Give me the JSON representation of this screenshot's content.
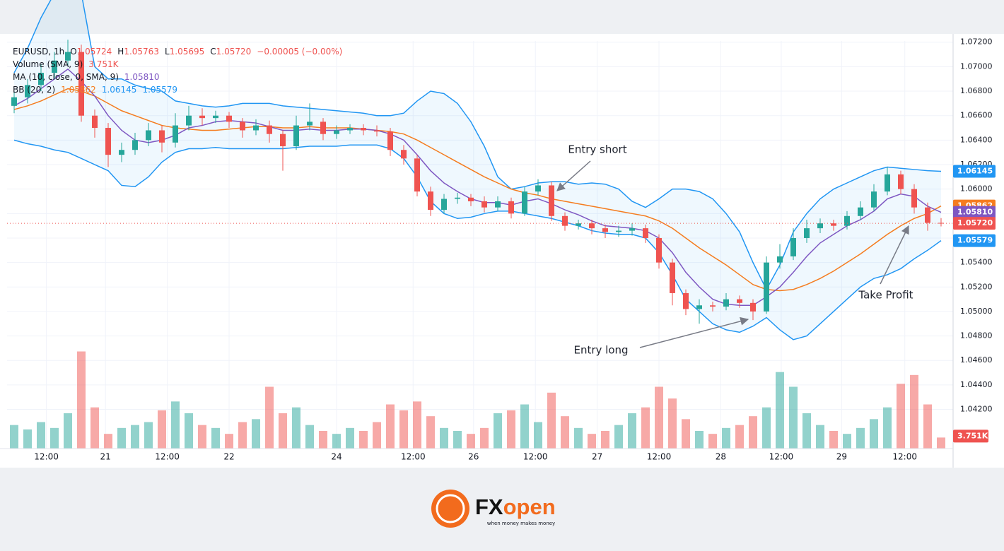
{
  "chart_data": {
    "type": "candlestick",
    "symbol": "EURUSD, 1h",
    "ohlc_legend": [
      {
        "key": "O",
        "value": "1.05724"
      },
      {
        "key": "H",
        "value": "1.05763"
      },
      {
        "key": "L",
        "value": "1.05695"
      },
      {
        "key": "C",
        "value": "1.05720"
      }
    ],
    "change": "−0.00005 (−0.00%)",
    "readouts": [
      {
        "name": "Volume (SMA, 9)",
        "values": [
          {
            "text": "3.751K",
            "color": "#ef5350"
          }
        ]
      },
      {
        "name": "MA (10, close, 0, SMA, 9)",
        "values": [
          {
            "text": "1.05810",
            "color": "#7e57c2"
          }
        ]
      },
      {
        "name": "BB (20, 2)",
        "values": [
          {
            "text": "1.05862",
            "color": "#f57c1f"
          },
          {
            "text": "1.06145",
            "color": "#2196f3"
          },
          {
            "text": "1.05579",
            "color": "#2196f3"
          }
        ]
      }
    ],
    "up_color": "#26a69a",
    "down_color": "#ef5350",
    "ma_color": "#7e57c2",
    "bb_mid_color": "#f57c1f",
    "bb_band_color": "#2196f3",
    "ylim": [
      1.0388,
      1.0721
    ],
    "yticks": [
      {
        "value": 1.042,
        "label": "1.04200"
      },
      {
        "value": 1.044,
        "label": "1.04400"
      },
      {
        "value": 1.046,
        "label": "1.04600"
      },
      {
        "value": 1.048,
        "label": "1.04800"
      },
      {
        "value": 1.05,
        "label": "1.05000"
      },
      {
        "value": 1.052,
        "label": "1.05200"
      },
      {
        "value": 1.054,
        "label": "1.05400"
      },
      {
        "value": 1.056,
        "label": "1.05600"
      },
      {
        "value": 1.058,
        "label": "1.05800"
      },
      {
        "value": 1.06,
        "label": "1.06000"
      },
      {
        "value": 1.062,
        "label": "1.06200"
      },
      {
        "value": 1.064,
        "label": "1.06400"
      },
      {
        "value": 1.066,
        "label": "1.06600"
      },
      {
        "value": 1.068,
        "label": "1.06800"
      },
      {
        "value": 1.07,
        "label": "1.07000"
      },
      {
        "value": 1.072,
        "label": "1.07200"
      }
    ],
    "xticks": [
      {
        "value": 2.4,
        "label": "12:00"
      },
      {
        "value": 6.8,
        "label": "21"
      },
      {
        "value": 11.4,
        "label": "12:00"
      },
      {
        "value": 16,
        "label": "22"
      },
      {
        "value": 24,
        "label": "24"
      },
      {
        "value": 29.7,
        "label": "12:00"
      },
      {
        "value": 34.2,
        "label": "26"
      },
      {
        "value": 38.8,
        "label": "12:00"
      },
      {
        "value": 43.4,
        "label": "27"
      },
      {
        "value": 48,
        "label": "12:00"
      },
      {
        "value": 52.6,
        "label": "28"
      },
      {
        "value": 57.1,
        "label": "12:00"
      },
      {
        "value": 61.6,
        "label": "29"
      },
      {
        "value": 66.3,
        "label": "12:00"
      }
    ],
    "grid": true,
    "open": [
      1.0668,
      1.0675,
      1.0685,
      1.0695,
      1.0705,
      1.0712,
      1.066,
      1.065,
      1.0628,
      1.0632,
      1.064,
      1.0648,
      1.0638,
      1.0652,
      1.066,
      1.0658,
      1.066,
      1.0655,
      1.0648,
      1.0652,
      1.0645,
      1.0635,
      1.0652,
      1.0655,
      1.0645,
      1.0648,
      1.065,
      1.0648,
      1.0647,
      1.0632,
      1.0625,
      1.0598,
      1.0583,
      1.0592,
      1.0593,
      1.059,
      1.0585,
      1.059,
      1.058,
      1.0598,
      1.0603,
      1.0578,
      1.057,
      1.0572,
      1.0568,
      1.0565,
      1.0566,
      1.0568,
      1.056,
      1.054,
      1.0515,
      1.0502,
      1.0505,
      1.0504,
      1.051,
      1.0507,
      1.05,
      1.054,
      1.0545,
      1.056,
      1.0568,
      1.0572,
      1.057,
      1.0578,
      1.0585,
      1.0598,
      1.0612,
      1.06,
      1.0585,
      1.05724
    ],
    "high": [
      1.068,
      1.069,
      1.0702,
      1.0712,
      1.0722,
      1.0718,
      1.0665,
      1.0654,
      1.0638,
      1.0646,
      1.0654,
      1.0652,
      1.0662,
      1.0668,
      1.0666,
      1.0664,
      1.0663,
      1.0658,
      1.0657,
      1.0656,
      1.0648,
      1.066,
      1.067,
      1.0658,
      1.0652,
      1.0653,
      1.0653,
      1.0652,
      1.065,
      1.0636,
      1.0628,
      1.0602,
      1.0596,
      1.0597,
      1.0596,
      1.0594,
      1.0594,
      1.0593,
      1.0602,
      1.0608,
      1.0606,
      1.0581,
      1.0575,
      1.0575,
      1.0571,
      1.057,
      1.0572,
      1.0571,
      1.0563,
      1.0543,
      1.0518,
      1.051,
      1.0508,
      1.0515,
      1.0513,
      1.051,
      1.0545,
      1.0555,
      1.0568,
      1.0575,
      1.0576,
      1.0575,
      1.0582,
      1.059,
      1.0604,
      1.0618,
      1.0615,
      1.0604,
      1.0589,
      1.05763
    ],
    "low": [
      1.0662,
      1.067,
      1.068,
      1.069,
      1.07,
      1.0655,
      1.0642,
      1.0618,
      1.0622,
      1.0628,
      1.0635,
      1.063,
      1.0634,
      1.0648,
      1.0652,
      1.0654,
      1.065,
      1.0642,
      1.0644,
      1.0638,
      1.0615,
      1.0632,
      1.0648,
      1.064,
      1.0641,
      1.0645,
      1.0644,
      1.0643,
      1.0627,
      1.062,
      1.0594,
      1.0578,
      1.058,
      1.0588,
      1.0586,
      1.0581,
      1.0582,
      1.0576,
      1.0578,
      1.0595,
      1.0574,
      1.0566,
      1.0567,
      1.0563,
      1.056,
      1.0561,
      1.0562,
      1.0556,
      1.0535,
      1.0505,
      1.0497,
      1.049,
      1.05,
      1.0501,
      1.0503,
      1.0493,
      1.0498,
      1.0535,
      1.0542,
      1.0556,
      1.0564,
      1.0566,
      1.0567,
      1.0575,
      1.0582,
      1.0595,
      1.0596,
      1.058,
      1.0566,
      1.05695
    ],
    "close": [
      1.0675,
      1.0685,
      1.0695,
      1.0705,
      1.0712,
      1.066,
      1.065,
      1.0628,
      1.0632,
      1.064,
      1.0648,
      1.0638,
      1.0652,
      1.066,
      1.0658,
      1.066,
      1.0655,
      1.0648,
      1.0652,
      1.0645,
      1.0635,
      1.0652,
      1.0655,
      1.0645,
      1.0648,
      1.065,
      1.0648,
      1.0647,
      1.0632,
      1.0625,
      1.0598,
      1.0583,
      1.0592,
      1.0593,
      1.059,
      1.0585,
      1.059,
      1.058,
      1.0598,
      1.0603,
      1.0578,
      1.057,
      1.0572,
      1.0568,
      1.0565,
      1.0566,
      1.0568,
      1.056,
      1.054,
      1.0515,
      1.0502,
      1.0505,
      1.0504,
      1.051,
      1.0507,
      1.05,
      1.054,
      1.0545,
      1.056,
      1.0568,
      1.0572,
      1.057,
      1.0578,
      1.0585,
      1.0598,
      1.0612,
      1.06,
      1.0585,
      1.05724,
      1.0572
    ],
    "volume": [
      8000,
      6500,
      9000,
      7000,
      12000,
      33000,
      14000,
      5000,
      7000,
      8000,
      9000,
      13000,
      16000,
      12000,
      8000,
      7000,
      5000,
      9000,
      10000,
      21000,
      12000,
      14000,
      8000,
      6000,
      5000,
      7000,
      6000,
      9000,
      15000,
      13000,
      16000,
      11000,
      7000,
      6000,
      5000,
      7000,
      12000,
      13000,
      15000,
      9000,
      19000,
      11000,
      7000,
      5000,
      6000,
      8000,
      12000,
      14000,
      21000,
      17000,
      10000,
      6000,
      5000,
      7000,
      8000,
      11000,
      14000,
      26000,
      21000,
      12000,
      8000,
      6000,
      5000,
      7000,
      10000,
      14000,
      22000,
      25000,
      15000,
      3751
    ],
    "volume_lim": [
      0,
      36000
    ],
    "ma": [
      1.0668,
      1.0674,
      1.0682,
      1.069,
      1.0698,
      1.0688,
      1.0676,
      1.066,
      1.0648,
      1.064,
      1.0638,
      1.064,
      1.0644,
      1.065,
      1.0652,
      1.0655,
      1.0656,
      1.0655,
      1.0654,
      1.0651,
      1.0648,
      1.0648,
      1.0649,
      1.0648,
      1.0648,
      1.0649,
      1.0649,
      1.0648,
      1.0645,
      1.064,
      1.0628,
      1.0615,
      1.0605,
      1.0598,
      1.0592,
      1.0589,
      1.0589,
      1.0587,
      1.059,
      1.0592,
      1.0588,
      1.0583,
      1.0579,
      1.0574,
      1.057,
      1.0569,
      1.0568,
      1.0566,
      1.056,
      1.0548,
      1.0532,
      1.052,
      1.051,
      1.0506,
      1.0505,
      1.0505,
      1.0512,
      1.052,
      1.0532,
      1.0545,
      1.0556,
      1.0563,
      1.057,
      1.0575,
      1.0582,
      1.0592,
      1.0596,
      1.0594,
      1.0586,
      1.0581
    ],
    "bb_mid": [
      1.0665,
      1.0668,
      1.0672,
      1.0677,
      1.0682,
      1.068,
      1.0676,
      1.067,
      1.0664,
      1.066,
      1.0656,
      1.0652,
      1.065,
      1.0649,
      1.0648,
      1.0648,
      1.0649,
      1.065,
      1.0651,
      1.0651,
      1.065,
      1.065,
      1.0651,
      1.065,
      1.065,
      1.065,
      1.0649,
      1.0648,
      1.0647,
      1.0645,
      1.064,
      1.0634,
      1.0628,
      1.0622,
      1.0616,
      1.061,
      1.0605,
      1.06,
      1.0597,
      1.0595,
      1.0592,
      1.059,
      1.0588,
      1.0586,
      1.0584,
      1.0582,
      1.058,
      1.0578,
      1.0574,
      1.0568,
      1.056,
      1.0552,
      1.0545,
      1.0538,
      1.053,
      1.0522,
      1.0518,
      1.0517,
      1.0518,
      1.0522,
      1.0527,
      1.0533,
      1.054,
      1.0547,
      1.0555,
      1.0563,
      1.057,
      1.0576,
      1.058,
      1.05862
    ],
    "bb_upper": [
      1.0695,
      1.0715,
      1.074,
      1.076,
      1.077,
      1.076,
      1.07,
      1.069,
      1.069,
      1.0685,
      1.0682,
      1.068,
      1.0672,
      1.067,
      1.0668,
      1.0667,
      1.0668,
      1.067,
      1.067,
      1.067,
      1.0668,
      1.0667,
      1.0666,
      1.0665,
      1.0664,
      1.0663,
      1.0662,
      1.066,
      1.066,
      1.0662,
      1.0672,
      1.068,
      1.0678,
      1.067,
      1.0655,
      1.0635,
      1.061,
      1.06,
      1.0602,
      1.0605,
      1.0606,
      1.0606,
      1.0604,
      1.0605,
      1.0604,
      1.06,
      1.059,
      1.0585,
      1.0592,
      1.06,
      1.06,
      1.0598,
      1.0592,
      1.058,
      1.0565,
      1.054,
      1.0518,
      1.0538,
      1.0565,
      1.058,
      1.0592,
      1.06,
      1.0605,
      1.061,
      1.0615,
      1.0618,
      1.0617,
      1.0616,
      1.0615,
      1.06145
    ],
    "bb_lower": [
      1.064,
      1.0637,
      1.0635,
      1.0632,
      1.063,
      1.0625,
      1.062,
      1.0615,
      1.0603,
      1.0602,
      1.061,
      1.0622,
      1.063,
      1.0633,
      1.0633,
      1.0634,
      1.0633,
      1.0633,
      1.0633,
      1.0633,
      1.0633,
      1.0634,
      1.0635,
      1.0635,
      1.0635,
      1.0636,
      1.0636,
      1.0636,
      1.0633,
      1.0625,
      1.061,
      1.059,
      1.058,
      1.0576,
      1.0577,
      1.058,
      1.0582,
      1.0582,
      1.058,
      1.0578,
      1.0576,
      1.0573,
      1.057,
      1.0566,
      1.0564,
      1.0563,
      1.0563,
      1.056,
      1.0548,
      1.053,
      1.051,
      1.05,
      1.049,
      1.0485,
      1.0483,
      1.0488,
      1.0495,
      1.0485,
      1.0477,
      1.048,
      1.049,
      1.05,
      1.051,
      1.052,
      1.0527,
      1.053,
      1.0535,
      1.0543,
      1.055,
      1.05579
    ],
    "axis_tags": [
      {
        "value": 1.06145,
        "label": "1.06145",
        "color": "#2196f3"
      },
      {
        "value": 1.05862,
        "label": "1.05862",
        "color": "#f57c1f"
      },
      {
        "value": 1.0581,
        "label": "1.05810",
        "color": "#7e57c2"
      },
      {
        "value": 1.0572,
        "label": "1.05720",
        "color": "#ef5350",
        "price_line": true
      },
      {
        "value": 1.05579,
        "label": "1.05579",
        "color": "#2196f3"
      }
    ],
    "volume_tag": {
      "value": 3751,
      "label": "3.751K",
      "color": "#ef5350"
    },
    "annotations": [
      "Entry short",
      "Entry long",
      "Take Profit"
    ]
  },
  "brand": {
    "logo": [
      "FX",
      "open"
    ],
    "tagline": "when money makes money"
  }
}
